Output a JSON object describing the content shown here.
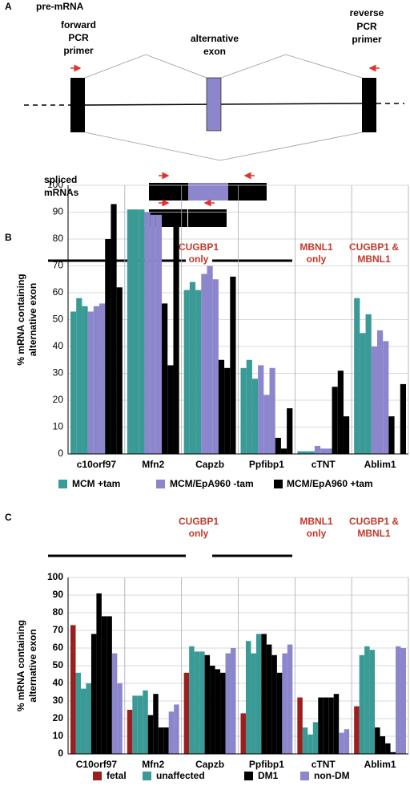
{
  "panel_a": {
    "label": "A",
    "title": "pre-mRNA",
    "forward_primer": [
      "forward",
      "PCR",
      "primer"
    ],
    "alternative_exon": [
      "alternative",
      "exon"
    ],
    "reverse_primer": [
      "reverse",
      "PCR",
      "primer"
    ],
    "spliced": [
      "spliced",
      "mRNAs"
    ]
  },
  "chart_data": [
    {
      "type": "bar",
      "panel_label": "B",
      "annotations": [
        [
          "CUGBP1",
          "only"
        ],
        [
          "MBNL1",
          "only"
        ],
        [
          "CUGBP1 &",
          "MBNL1"
        ]
      ],
      "y_label": [
        "% mRNA containing",
        "alternative exon"
      ],
      "categories": [
        "c10orf97",
        "Mfn2",
        "Capzb",
        "Ppfibp1",
        "cTNT",
        "Ablim1"
      ],
      "series": [
        {
          "name": "MCM +tam",
          "color": "#3a9a96",
          "values": [
            [
              53,
              58,
              55
            ],
            [
              91,
              91,
              91
            ],
            [
              61,
              64,
              61
            ],
            [
              32,
              35,
              28
            ],
            [
              1,
              1,
              1
            ],
            [
              58,
              45,
              52
            ]
          ]
        },
        {
          "name": "MCM/EpA960 -tam",
          "color": "#8c86cc",
          "values": [
            [
              53,
              55,
              56
            ],
            [
              90,
              89,
              89
            ],
            [
              67,
              70,
              65
            ],
            [
              33,
              22,
              32
            ],
            [
              3,
              2,
              2
            ],
            [
              40,
              46,
              42
            ]
          ]
        },
        {
          "name": "MCM/EpA960 +tam",
          "color": "#000000",
          "values": [
            [
              80,
              93,
              62
            ],
            [
              56,
              33,
              86
            ],
            [
              35,
              32,
              66
            ],
            [
              6,
              2,
              17
            ],
            [
              25,
              31,
              14
            ],
            [
              14,
              0,
              26
            ]
          ]
        }
      ],
      "ylim": [
        0,
        100
      ],
      "yticks": [
        0,
        10,
        20,
        30,
        40,
        50,
        60,
        70,
        80,
        90,
        100
      ],
      "grid": true
    },
    {
      "type": "bar",
      "panel_label": "C",
      "annotations": [
        [
          "CUGBP1",
          "only"
        ],
        [
          "MBNL1",
          "only"
        ],
        [
          "CUGBP1 &",
          "MBNL1"
        ]
      ],
      "y_label": [
        "% mRNA containing",
        "alternative exon"
      ],
      "categories": [
        "C10orf97",
        "Mfn2",
        "Capzb",
        "Ppfibp1",
        "cTNT",
        "Ablim1"
      ],
      "series": [
        {
          "name": "fetal",
          "color": "#9c1f1f",
          "values": [
            [
              73
            ],
            [
              25
            ],
            [
              46
            ],
            [
              23
            ],
            [
              32
            ],
            [
              27
            ]
          ]
        },
        {
          "name": "unaffected",
          "color": "#3a9a96",
          "values": [
            [
              46,
              37,
              40
            ],
            [
              33,
              33,
              36
            ],
            [
              61,
              58,
              58
            ],
            [
              64,
              57,
              68
            ],
            [
              15,
              11,
              18
            ],
            [
              56,
              61,
              59
            ]
          ]
        },
        {
          "name": "DM1",
          "color": "#000000",
          "values": [
            [
              68,
              91,
              78,
              78
            ],
            [
              22,
              34,
              15,
              15
            ],
            [
              56,
              50,
              48,
              46
            ],
            [
              68,
              62,
              56,
              46
            ],
            [
              32,
              32,
              32,
              34
            ],
            [
              15,
              10,
              6,
              1
            ]
          ]
        },
        {
          "name": "non-DM",
          "color": "#8c86cc",
          "values": [
            [
              57,
              40
            ],
            [
              24,
              28
            ],
            [
              57,
              60
            ],
            [
              57,
              62
            ],
            [
              12,
              14
            ],
            [
              61,
              60
            ]
          ]
        }
      ],
      "ylim": [
        0,
        100
      ],
      "yticks": [
        0,
        10,
        20,
        30,
        40,
        50,
        60,
        70,
        80,
        90,
        100
      ],
      "grid": true
    }
  ]
}
